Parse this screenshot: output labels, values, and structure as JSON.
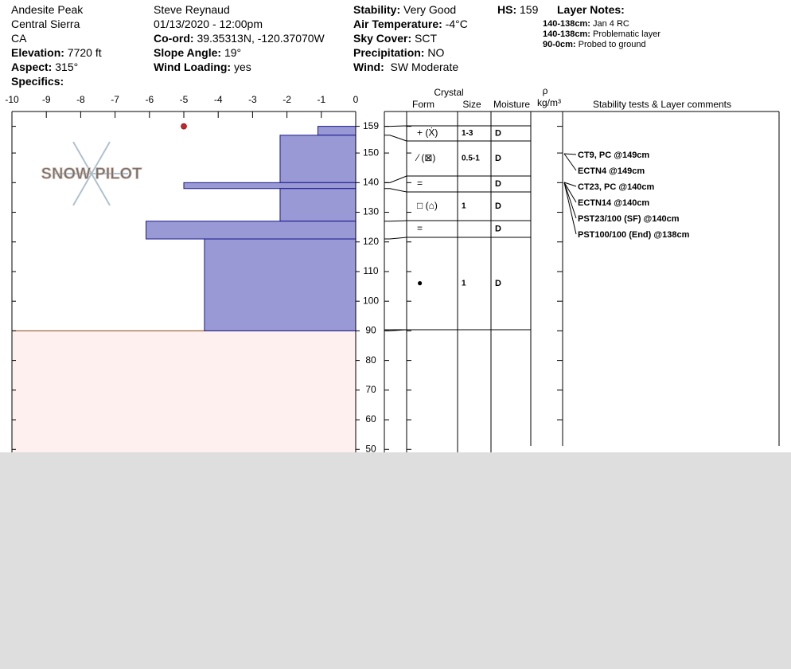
{
  "header": {
    "columns": [
      [
        {
          "text": "Andesite Peak"
        },
        {
          "text": "Central Sierra"
        },
        {
          "text": "CA"
        },
        {
          "label": "Elevation:",
          "text": "7720 ft"
        },
        {
          "label": "Aspect:",
          "text": "315°"
        },
        {
          "label": "Specifics:"
        }
      ],
      [
        {
          "text": "Steve Reynaud"
        },
        {
          "text": "01/13/2020 - 12:00pm"
        },
        {
          "label": "Co-ord:",
          "text": "39.35313N, -120.37070W"
        },
        {
          "label": "Slope Angle:",
          "text": "19°"
        },
        {
          "label": "Wind Loading:",
          "text": "yes"
        }
      ],
      [
        {
          "label": "Stability:",
          "text": "Very Good"
        },
        {
          "label": "Air Temperature:",
          "text": "-4°C"
        },
        {
          "label": "Sky Cover:",
          "text": "SCT"
        },
        {
          "label": "Precipitation:",
          "text": "NO"
        },
        {
          "label": "Wind:",
          "text": " SW Moderate"
        }
      ],
      [
        {
          "label": "HS:",
          "text": "159"
        }
      ]
    ],
    "layer_notes_title": "Layer Notes:",
    "layer_notes": [
      {
        "label": "140-138cm:",
        "text": "Jan 4 RC"
      },
      {
        "label": "140-138cm:",
        "text": "Problematic layer"
      },
      {
        "label": "90-0cm:",
        "text": "Probed to ground"
      }
    ]
  },
  "logo": "SNOW PILOT",
  "chart_data": {
    "type": "bar",
    "orientation": "horizontal",
    "color": "#9999d6",
    "layer_top": [
      159,
      156,
      140,
      138,
      127,
      121
    ],
    "layer_bottom": [
      156,
      140,
      138,
      127,
      121,
      90
    ],
    "values": [
      -1.1,
      -2.2,
      -5,
      -2.2,
      -6.1,
      -4.4
    ],
    "xlim": [
      -10,
      0
    ],
    "xticks": [
      -10,
      -9,
      -8,
      -7,
      -6,
      -5,
      -4,
      -3,
      -2,
      -1,
      0
    ],
    "ylim": [
      49,
      164
    ],
    "yticks": [
      50,
      60,
      70,
      80,
      90,
      100,
      110,
      120,
      130,
      140,
      150,
      159
    ],
    "ground_top": 90,
    "ground_color": "#fdf0ef",
    "temperature": [
      {
        "height": 159,
        "value": -5,
        "color": "#c0272d"
      }
    ]
  },
  "table": {
    "header": {
      "crystal": "Crystal",
      "form": "Form",
      "size": "Size",
      "moisture": "Moisture",
      "rho": "ρ",
      "density": "kg/m³",
      "comments": "Stability tests & Layer comments"
    },
    "rows": [
      {
        "form": "+ (Ẋ)",
        "size": "1-3",
        "moisture": "D"
      },
      {
        "form": "⁄ (⊠)",
        "size": "0.5-1",
        "moisture": "D"
      },
      {
        "form": "=",
        "size": null,
        "moisture": "D"
      },
      {
        "form": "□ (⌂)",
        "size": "1",
        "moisture": "D"
      },
      {
        "form": "=",
        "size": null,
        "moisture": "D"
      },
      {
        "form": "●",
        "size": "1",
        "moisture": "D"
      }
    ],
    "tests": [
      "CT9, PC @149cm",
      "ECTN4 @149cm",
      "CT23, PC @140cm",
      "ECTN14 @140cm",
      "PST23/100 (SF) @140cm",
      "PST100/100 (End) @138cm"
    ]
  }
}
